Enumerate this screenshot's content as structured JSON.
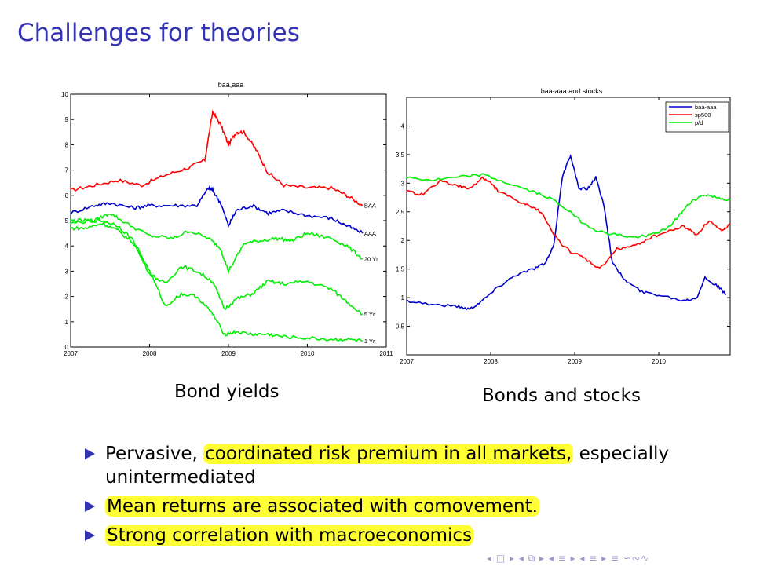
{
  "slide_title": "Challenges for theories",
  "captions": {
    "left": "Bond yields",
    "right": "Bonds and stocks"
  },
  "bullets": [
    {
      "segments": [
        {
          "t": "Pervasive, ",
          "hl": false
        },
        {
          "t": "coordinated risk premium in all markets,",
          "hl": true
        },
        {
          "t": " especially unintermediated",
          "hl": false
        }
      ]
    },
    {
      "segments": [
        {
          "t": "Mean returns are associated with comovement.",
          "hl": true
        }
      ]
    },
    {
      "segments": [
        {
          "t": "Strong correlation with macroeconomics",
          "hl": true
        }
      ]
    }
  ],
  "nav_glyphs": "◂ □ ▸ ◂ ⧉ ▸ ◂ ≡ ▸ ◂ ≡ ▸   ≡   ∽∾∿",
  "colors": {
    "title": "#3333b3",
    "highlight": "#ffff33",
    "red": "#ff0000",
    "blue": "#0000cc",
    "green": "#00ee00"
  },
  "chart_data": [
    {
      "type": "line",
      "title": "baa,aaa",
      "xlabel": "",
      "ylabel": "",
      "xlim": [
        2007,
        2011
      ],
      "ylim": [
        0,
        10
      ],
      "xticks": [
        "2007",
        "2008",
        "2009",
        "2010",
        "2011"
      ],
      "yticks": [
        "0",
        "1",
        "2",
        "3",
        "4",
        "5",
        "6",
        "7",
        "8",
        "9",
        "10"
      ],
      "annotations": [
        "BAA",
        "AAA",
        "20 Yr",
        "5 Yr",
        "1 Yr"
      ],
      "series": [
        {
          "name": "BAA",
          "color": "#ff0000",
          "x": [
            2007,
            2007.3,
            2007.6,
            2007.9,
            2008.2,
            2008.5,
            2008.7,
            2008.8,
            2008.9,
            2009.0,
            2009.1,
            2009.2,
            2009.35,
            2009.5,
            2009.7,
            2010.0,
            2010.3,
            2010.5,
            2010.7
          ],
          "y": [
            6.2,
            6.4,
            6.6,
            6.4,
            6.8,
            7.1,
            7.4,
            9.3,
            8.8,
            8.0,
            8.5,
            8.5,
            7.8,
            6.9,
            6.4,
            6.3,
            6.3,
            6.0,
            5.6
          ]
        },
        {
          "name": "AAA",
          "color": "#0000cc",
          "x": [
            2007,
            2007.3,
            2007.5,
            2007.8,
            2008.0,
            2008.3,
            2008.6,
            2008.75,
            2008.8,
            2008.9,
            2009.0,
            2009.1,
            2009.3,
            2009.5,
            2009.7,
            2010.0,
            2010.3,
            2010.5,
            2010.7
          ],
          "y": [
            5.3,
            5.6,
            5.7,
            5.5,
            5.6,
            5.6,
            5.6,
            6.3,
            6.2,
            5.7,
            4.8,
            5.4,
            5.6,
            5.3,
            5.4,
            5.2,
            5.1,
            4.8,
            4.5
          ]
        },
        {
          "name": "20 Yr",
          "color": "#00ee00",
          "x": [
            2007,
            2007.3,
            2007.5,
            2007.7,
            2008.0,
            2008.3,
            2008.5,
            2008.75,
            2008.9,
            2009.0,
            2009.2,
            2009.4,
            2009.6,
            2009.8,
            2010.0,
            2010.3,
            2010.5,
            2010.7
          ],
          "y": [
            4.9,
            5.0,
            5.3,
            4.9,
            4.4,
            4.3,
            4.6,
            4.3,
            3.9,
            3.0,
            4.1,
            4.2,
            4.3,
            4.2,
            4.5,
            4.3,
            4.0,
            3.5
          ]
        },
        {
          "name": "5 Yr",
          "color": "#00ee00",
          "x": [
            2007,
            2007.2,
            2007.4,
            2007.6,
            2007.8,
            2008.0,
            2008.2,
            2008.4,
            2008.6,
            2008.8,
            2008.95,
            2009.1,
            2009.3,
            2009.5,
            2009.7,
            2010.0,
            2010.3,
            2010.5,
            2010.7
          ],
          "y": [
            4.7,
            4.7,
            4.9,
            4.6,
            4.1,
            2.9,
            2.5,
            3.2,
            3.0,
            2.6,
            1.5,
            1.9,
            2.1,
            2.6,
            2.5,
            2.6,
            2.3,
            1.8,
            1.3
          ]
        },
        {
          "name": "1 Yr",
          "color": "#00ee00",
          "x": [
            2007,
            2007.2,
            2007.4,
            2007.6,
            2007.8,
            2008.0,
            2008.2,
            2008.4,
            2008.6,
            2008.8,
            2008.95,
            2009.1,
            2009.3,
            2009.5,
            2009.7,
            2010.0,
            2010.3,
            2010.5,
            2010.7
          ],
          "y": [
            5.0,
            5.0,
            5.0,
            4.8,
            4.2,
            3.0,
            1.6,
            2.1,
            2.0,
            1.3,
            0.5,
            0.6,
            0.5,
            0.5,
            0.4,
            0.35,
            0.3,
            0.3,
            0.25
          ]
        }
      ]
    },
    {
      "type": "line",
      "title": "baa-aaa and stocks",
      "xlabel": "",
      "ylabel": "",
      "xlim": [
        2007,
        2010.85
      ],
      "ylim": [
        0,
        4.5
      ],
      "xticks": [
        "2007",
        "2008",
        "2009",
        "2010"
      ],
      "yticks": [
        "0.5",
        "1",
        "1.5",
        "2",
        "2.5",
        "3",
        "3.5",
        "4"
      ],
      "legend_position": "top-right",
      "series": [
        {
          "name": "baa-aaa",
          "color": "#0000cc",
          "x": [
            2007,
            2007.3,
            2007.6,
            2007.75,
            2007.9,
            2008.1,
            2008.3,
            2008.5,
            2008.65,
            2008.75,
            2008.85,
            2008.95,
            2009.05,
            2009.15,
            2009.25,
            2009.35,
            2009.45,
            2009.6,
            2009.8,
            2010.0,
            2010.3,
            2010.45,
            2010.55,
            2010.7,
            2010.8
          ],
          "y": [
            0.95,
            0.88,
            0.85,
            0.8,
            0.95,
            1.2,
            1.4,
            1.5,
            1.6,
            1.9,
            3.1,
            3.5,
            2.9,
            2.9,
            3.1,
            2.6,
            1.6,
            1.3,
            1.1,
            1.05,
            0.95,
            1.0,
            1.35,
            1.2,
            1.05
          ]
        },
        {
          "name": "sp500",
          "color": "#ff0000",
          "x": [
            2007,
            2007.2,
            2007.4,
            2007.6,
            2007.75,
            2007.9,
            2008.0,
            2008.1,
            2008.3,
            2008.45,
            2008.6,
            2008.8,
            2008.95,
            2009.1,
            2009.3,
            2009.5,
            2009.7,
            2009.9,
            2010.1,
            2010.3,
            2010.45,
            2010.6,
            2010.75,
            2010.85
          ],
          "y": [
            2.85,
            2.8,
            3.05,
            2.95,
            2.9,
            3.1,
            3.0,
            2.85,
            2.7,
            2.6,
            2.5,
            2.0,
            1.8,
            1.7,
            1.5,
            1.85,
            1.9,
            2.05,
            2.15,
            2.25,
            2.1,
            2.35,
            2.15,
            2.3
          ]
        },
        {
          "name": "p/d",
          "color": "#00ee00",
          "x": [
            2007,
            2007.3,
            2007.6,
            2007.9,
            2008.2,
            2008.5,
            2008.7,
            2008.9,
            2009.1,
            2009.3,
            2009.5,
            2009.7,
            2009.9,
            2010.1,
            2010.25,
            2010.4,
            2010.55,
            2010.7,
            2010.85
          ],
          "y": [
            3.1,
            3.05,
            3.1,
            3.15,
            3.0,
            2.85,
            2.75,
            2.55,
            2.3,
            2.15,
            2.1,
            2.05,
            2.1,
            2.2,
            2.45,
            2.7,
            2.8,
            2.75,
            2.7
          ]
        }
      ]
    }
  ]
}
